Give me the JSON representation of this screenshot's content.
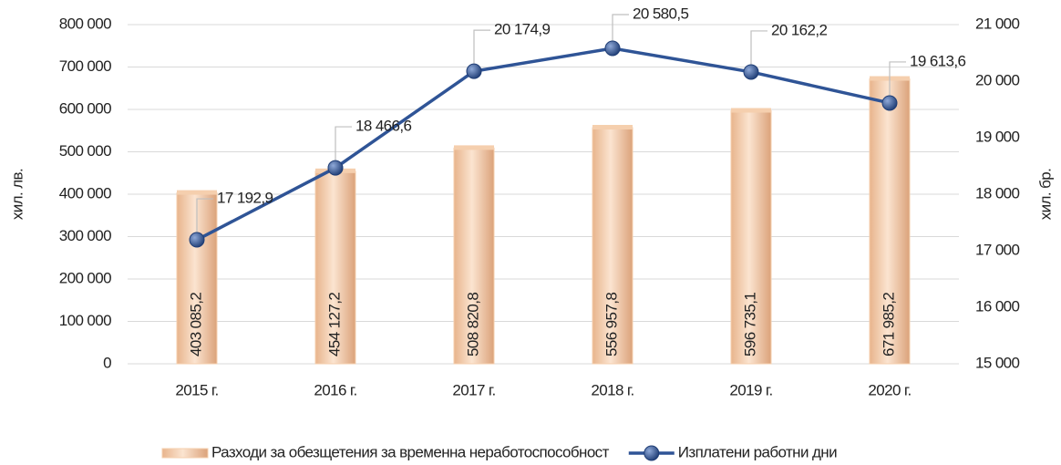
{
  "chart_data": {
    "type": "bar",
    "categories": [
      "2015 г.",
      "2016 г.",
      "2017 г.",
      "2018 г.",
      "2019 г.",
      "2020 г."
    ],
    "series": [
      {
        "name": "Разходи за обезщетения за временна неработоспособност",
        "type": "bar",
        "color": "#f5cfae",
        "values": [
          403085.2,
          454127.2,
          508820.8,
          556957.8,
          596735.1,
          671985.2
        ],
        "value_labels": [
          "403 085,2",
          "454 127,2",
          "508 820,8",
          "556 957,8",
          "596 735,1",
          "671 985,2"
        ]
      },
      {
        "name": "Изплатени работни дни",
        "type": "line",
        "color": "#2f5496",
        "axis": "y2",
        "values": [
          17192.9,
          18466.6,
          20174.9,
          20580.5,
          20162.2,
          19613.6
        ],
        "value_labels": [
          "17 192,9",
          "18 466,6",
          "20 174,9",
          "20 580,5",
          "20 162,2",
          "19 613,6"
        ]
      }
    ],
    "y_label": "хил. лв.",
    "y2_label": "хил. бр.",
    "ylim": [
      0,
      800000
    ],
    "yticks": [
      0,
      {
        "value": 100000,
        "label": "100 000"
      },
      {
        "value": 200000,
        "label": "200 000"
      },
      {
        "value": 300000,
        "label": "300 000"
      },
      {
        "value": 400000,
        "label": "400 000"
      },
      {
        "value": 500000,
        "label": "500 000"
      },
      {
        "value": 600000,
        "label": "600 000"
      },
      {
        "value": 700000,
        "label": "700 000"
      },
      {
        "value": 800000,
        "label": "800 000"
      }
    ],
    "y2lim": [
      15000,
      21000
    ],
    "y2ticks": [
      {
        "value": 15000,
        "label": "15 000"
      },
      {
        "value": 16000,
        "label": "16 000"
      },
      {
        "value": 17000,
        "label": "17 000"
      },
      {
        "value": 18000,
        "label": "18 000"
      },
      {
        "value": 19000,
        "label": "19 000"
      },
      {
        "value": 20000,
        "label": "20 000"
      },
      {
        "value": 21000,
        "label": "21 000"
      }
    ],
    "grid": true,
    "legend": "bottom"
  }
}
